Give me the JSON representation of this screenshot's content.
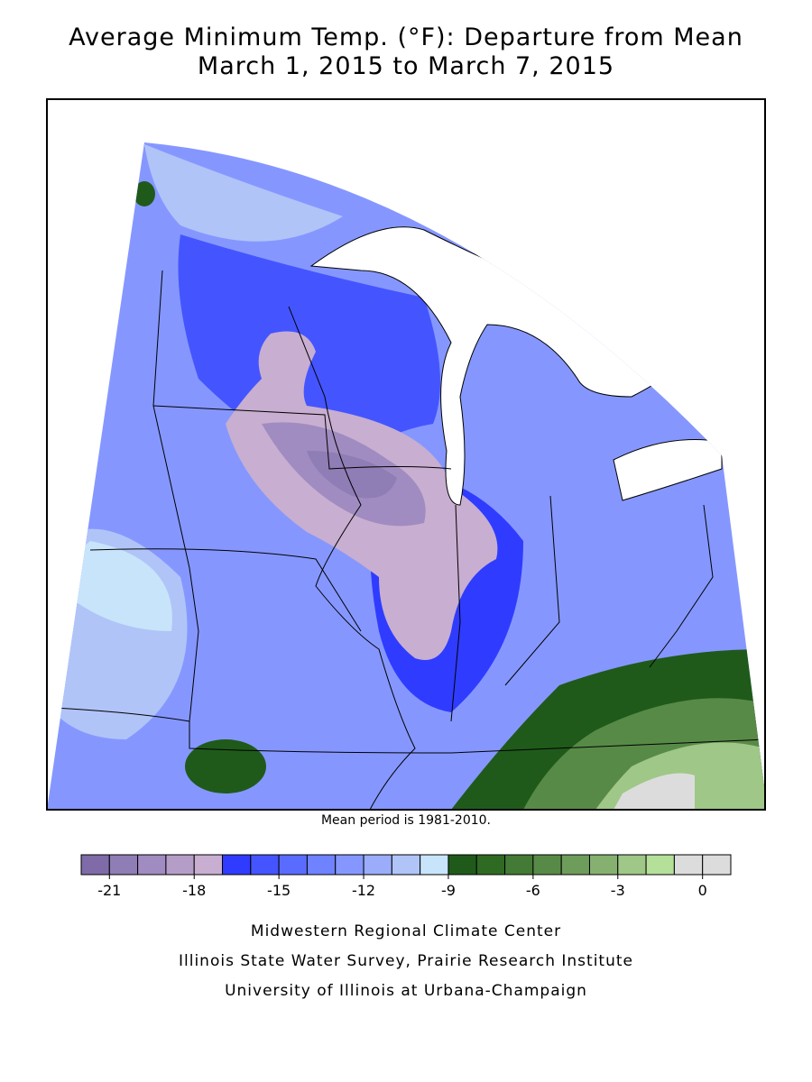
{
  "title": [
    "Average Minimum Temp. (°F): Departure from Mean",
    "March 1, 2015 to March 7, 2015"
  ],
  "caption": "Mean period is 1981-2010.",
  "colorbar": {
    "edges": [
      -22,
      -21,
      -20,
      -19,
      -18,
      -17,
      -16,
      -15,
      -14,
      -13,
      -12,
      -11,
      -10,
      -9,
      -8,
      -7,
      -6,
      -5,
      -4,
      -3,
      -2,
      -1,
      0,
      1
    ],
    "colors": [
      "#7f6ba8",
      "#8f7db5",
      "#a08cc0",
      "#b49ec8",
      "#c8aed0",
      "#2f3cff",
      "#4455ff",
      "#5a6cff",
      "#6f82ff",
      "#8597ff",
      "#9aacfa",
      "#b0c4f8",
      "#c8e4fb",
      "#1f5a1a",
      "#2f6a22",
      "#437a35",
      "#588a47",
      "#6e9c5a",
      "#86b070",
      "#9fc787",
      "#b4e09a",
      "#dcdcdc",
      "#dcdcdc"
    ],
    "ticks": [
      -21,
      -18,
      -15,
      -12,
      -9,
      -6,
      -3,
      0
    ]
  },
  "credits": [
    "Midwestern Regional Climate Center",
    "Illinois State Water Survey, Prairie Research Institute",
    "University of Illinois at Urbana-Champaign"
  ]
}
